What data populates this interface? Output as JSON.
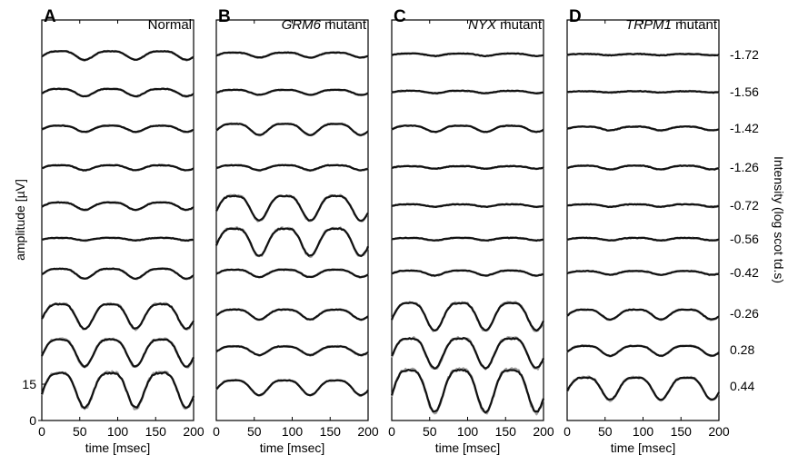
{
  "chart_data": {
    "type": "line",
    "ylabel": "amplitude [µV]",
    "right_label": "Intensity (log scot td.s)",
    "intensity_labels": [
      "-1.72",
      "-1.56",
      "-1.42",
      "-1.26",
      "-0.72",
      "-0.56",
      "-0.42",
      "-0.26",
      "0.28",
      "0.44"
    ],
    "scale_bar_labels": [
      "15",
      "0"
    ],
    "x_ticks": [
      "0",
      "50",
      "100",
      "150",
      "200"
    ],
    "xlabel": "time [msec]",
    "xlim": [
      0,
      200
    ],
    "stimulus_period_ms": 67,
    "series_colors": {
      "model_fit": "#111111",
      "recording": "#a0a0a0"
    },
    "panels": [
      {
        "letter": "A",
        "title_italic": "",
        "title_rest": "Normal",
        "traces": [
          {
            "intensity": "-1.72",
            "amplitude": 7
          },
          {
            "intensity": "-1.56",
            "amplitude": 6
          },
          {
            "intensity": "-1.42",
            "amplitude": 5
          },
          {
            "intensity": "-1.26",
            "amplitude": 4
          },
          {
            "intensity": "-0.72",
            "amplitude": 6
          },
          {
            "intensity": "-0.56",
            "amplitude": 2
          },
          {
            "intensity": "-0.42",
            "amplitude": 8
          },
          {
            "intensity": "-0.26",
            "amplitude": 20
          },
          {
            "intensity": "0.28",
            "amplitude": 22
          },
          {
            "intensity": "0.44",
            "amplitude": 28
          }
        ]
      },
      {
        "letter": "B",
        "title_italic": "GRM6",
        "title_rest": " mutant",
        "traces": [
          {
            "intensity": "-1.72",
            "amplitude": 4
          },
          {
            "intensity": "-1.56",
            "amplitude": 4
          },
          {
            "intensity": "-1.42",
            "amplitude": 9
          },
          {
            "intensity": "-1.26",
            "amplitude": 4
          },
          {
            "intensity": "-0.72",
            "amplitude": 20
          },
          {
            "intensity": "-0.56",
            "amplitude": 22
          },
          {
            "intensity": "-0.42",
            "amplitude": 6
          },
          {
            "intensity": "-0.26",
            "amplitude": 8
          },
          {
            "intensity": "0.28",
            "amplitude": 7
          },
          {
            "intensity": "0.44",
            "amplitude": 12
          }
        ]
      },
      {
        "letter": "C",
        "title_italic": "NYX",
        "title_rest": " mutant",
        "traces": [
          {
            "intensity": "-1.72",
            "amplitude": 2
          },
          {
            "intensity": "-1.56",
            "amplitude": 2
          },
          {
            "intensity": "-1.42",
            "amplitude": 5
          },
          {
            "intensity": "-1.26",
            "amplitude": 2
          },
          {
            "intensity": "-0.72",
            "amplitude": 2
          },
          {
            "intensity": "-0.56",
            "amplitude": 2
          },
          {
            "intensity": "-0.42",
            "amplitude": 4
          },
          {
            "intensity": "-0.26",
            "amplitude": 22
          },
          {
            "intensity": "0.28",
            "amplitude": 24
          },
          {
            "intensity": "0.44",
            "amplitude": 34
          }
        ]
      },
      {
        "letter": "D",
        "title_italic": "TRPM1",
        "title_rest": " mutant",
        "traces": [
          {
            "intensity": "-1.72",
            "amplitude": 1
          },
          {
            "intensity": "-1.56",
            "amplitude": 1
          },
          {
            "intensity": "-1.42",
            "amplitude": 3
          },
          {
            "intensity": "-1.26",
            "amplitude": 3
          },
          {
            "intensity": "-0.72",
            "amplitude": 2
          },
          {
            "intensity": "-0.56",
            "amplitude": 2
          },
          {
            "intensity": "-0.42",
            "amplitude": 3
          },
          {
            "intensity": "-0.26",
            "amplitude": 8
          },
          {
            "intensity": "0.28",
            "amplitude": 8
          },
          {
            "intensity": "0.44",
            "amplitude": 18
          }
        ]
      }
    ]
  }
}
